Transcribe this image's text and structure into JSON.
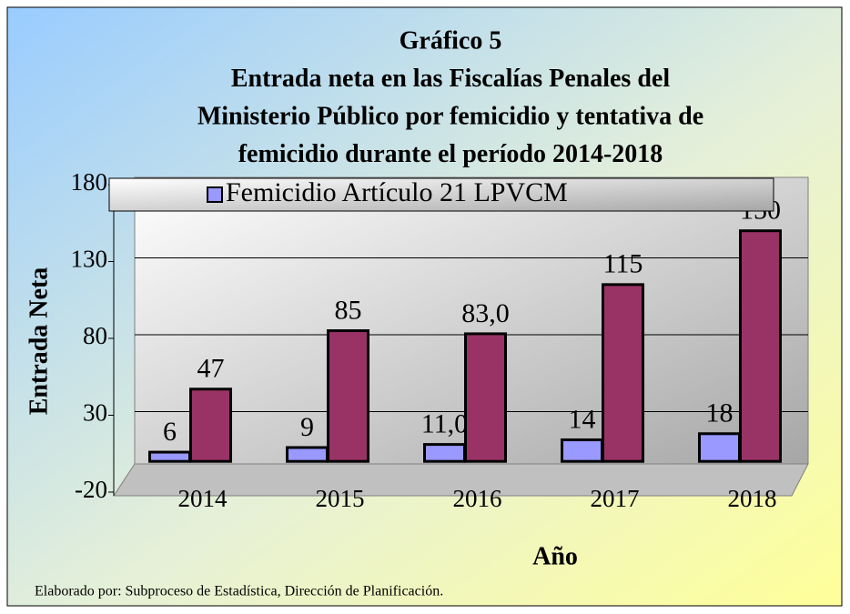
{
  "chart_data": {
    "type": "bar",
    "title": [
      "Gráfico  5",
      "Entrada neta en las Fiscalías Penales del",
      "Ministerio Público por femicidio y tentativa de",
      "femicidio durante el período 2014-2018"
    ],
    "y_label": "Entrada Neta",
    "x_label": "Año",
    "footer": "Elaborado por: Subproceso de Estadística, Dirección de Planificación.",
    "categories": [
      "2014",
      "2015",
      "2016",
      "2017",
      "2018"
    ],
    "series": [
      {
        "name": "Femicidio Artículo 21 LPVCM",
        "color": "#9999ff",
        "values": [
          6,
          9,
          11,
          14,
          18
        ],
        "value_labels": [
          "6",
          "9",
          "11,0",
          "14",
          "18"
        ]
      },
      {
        "color": "#993366",
        "values": [
          47,
          85,
          83,
          115,
          150
        ],
        "value_labels": [
          "47",
          "85",
          "83,0",
          "115",
          "150"
        ]
      }
    ],
    "ylim": [
      -20,
      180
    ],
    "yticks": [
      -20,
      30,
      80,
      130,
      180
    ],
    "grid": true
  }
}
